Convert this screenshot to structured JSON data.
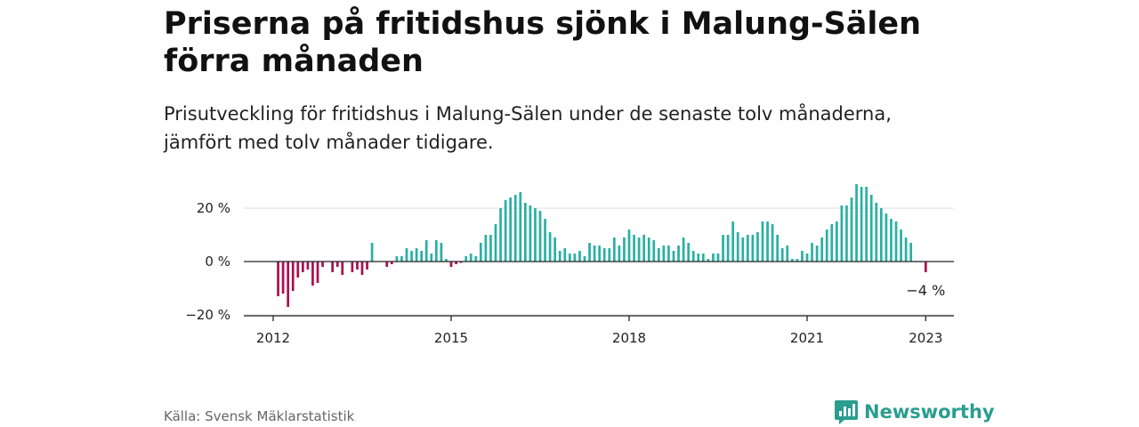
{
  "header": {
    "title": "Priserna på fritidshus sjönk i Malung-Sälen förra månaden",
    "subtitle": "Prisutveckling för fritidshus i Malung-Sälen under de senaste tolv månaderna, jämfört med tolv månader tidigare."
  },
  "footer": {
    "source": "Källa: Svensk Mäklarstatistik",
    "brand": "Newsworthy"
  },
  "colors": {
    "positive": "#2ab0a2",
    "negative": "#a8104f",
    "brand": "#2a9d8f"
  },
  "chart_data": {
    "type": "bar",
    "y_unit": "%",
    "ylim": [
      -20,
      30
    ],
    "y_ticks": [
      {
        "value": 20,
        "label": "20 %"
      },
      {
        "value": 0,
        "label": "0 %"
      },
      {
        "value": -20,
        "label": "−20 %"
      }
    ],
    "x_ticks": [
      {
        "value": "2012-01",
        "label": "2012"
      },
      {
        "value": "2015-01",
        "label": "2015"
      },
      {
        "value": "2018-01",
        "label": "2018"
      },
      {
        "value": "2021-01",
        "label": "2021"
      },
      {
        "value": "2023-01",
        "label": "2023"
      }
    ],
    "annotation": {
      "x": "2023-01",
      "value": -4,
      "label": "−4 %"
    },
    "grid": true,
    "legend": "none",
    "x": [
      "2012-01",
      "2012-02",
      "2012-03",
      "2012-04",
      "2012-05",
      "2012-06",
      "2012-07",
      "2012-08",
      "2012-09",
      "2012-10",
      "2012-11",
      "2012-12",
      "2013-01",
      "2013-02",
      "2013-03",
      "2013-04",
      "2013-05",
      "2013-06",
      "2013-07",
      "2013-08",
      "2013-09",
      "2013-10",
      "2013-11",
      "2013-12",
      "2014-01",
      "2014-02",
      "2014-03",
      "2014-04",
      "2014-05",
      "2014-06",
      "2014-07",
      "2014-08",
      "2014-09",
      "2014-10",
      "2014-11",
      "2014-12",
      "2015-01",
      "2015-02",
      "2015-03",
      "2015-04",
      "2015-05",
      "2015-06",
      "2015-07",
      "2015-08",
      "2015-09",
      "2015-10",
      "2015-11",
      "2015-12",
      "2016-01",
      "2016-02",
      "2016-03",
      "2016-04",
      "2016-05",
      "2016-06",
      "2016-07",
      "2016-08",
      "2016-09",
      "2016-10",
      "2016-11",
      "2016-12",
      "2017-01",
      "2017-02",
      "2017-03",
      "2017-04",
      "2017-05",
      "2017-06",
      "2017-07",
      "2017-08",
      "2017-09",
      "2017-10",
      "2017-11",
      "2017-12",
      "2018-01",
      "2018-02",
      "2018-03",
      "2018-04",
      "2018-05",
      "2018-06",
      "2018-07",
      "2018-08",
      "2018-09",
      "2018-10",
      "2018-11",
      "2018-12",
      "2019-01",
      "2019-02",
      "2019-03",
      "2019-04",
      "2019-05",
      "2019-06",
      "2019-07",
      "2019-08",
      "2019-09",
      "2019-10",
      "2019-11",
      "2019-12",
      "2020-01",
      "2020-02",
      "2020-03",
      "2020-04",
      "2020-05",
      "2020-06",
      "2020-07",
      "2020-08",
      "2020-09",
      "2020-10",
      "2020-11",
      "2020-12",
      "2021-01",
      "2021-02",
      "2021-03",
      "2021-04",
      "2021-05",
      "2021-06",
      "2021-07",
      "2021-08",
      "2021-09",
      "2021-10",
      "2021-11",
      "2021-12",
      "2022-01",
      "2022-02",
      "2022-03",
      "2022-04",
      "2022-05",
      "2022-06",
      "2022-07",
      "2022-08",
      "2022-09",
      "2022-10",
      "2022-11",
      "2022-12",
      "2023-01"
    ],
    "values": [
      null,
      -13,
      -12,
      -17,
      -11,
      -6,
      -4,
      -3,
      -9,
      -8,
      -2,
      null,
      -4,
      -2,
      -5,
      null,
      -4,
      -3,
      -5,
      -3,
      7,
      null,
      null,
      -2,
      -1,
      2,
      2,
      5,
      4,
      5,
      4,
      8,
      3,
      8,
      7,
      1,
      -2,
      -1,
      -0.5,
      2,
      3,
      2,
      7,
      10,
      10,
      14,
      20,
      23,
      24,
      25,
      26,
      22,
      21,
      20,
      19,
      16,
      11,
      9,
      4,
      5,
      3,
      3,
      4,
      2,
      7,
      6,
      6,
      5,
      5,
      9,
      6,
      9,
      12,
      10,
      9,
      10,
      9,
      8,
      5,
      6,
      6,
      4,
      6,
      9,
      7,
      4,
      3,
      3,
      1,
      3,
      3,
      10,
      10,
      15,
      11,
      9,
      10,
      10,
      11,
      15,
      15,
      14,
      10,
      5,
      6,
      1,
      1,
      4,
      3,
      7,
      6,
      9,
      12,
      14,
      15,
      21,
      21,
      24,
      29,
      28,
      28,
      25,
      22,
      20,
      18,
      16,
      15,
      12,
      9,
      7,
      0,
      0,
      -4
    ]
  }
}
